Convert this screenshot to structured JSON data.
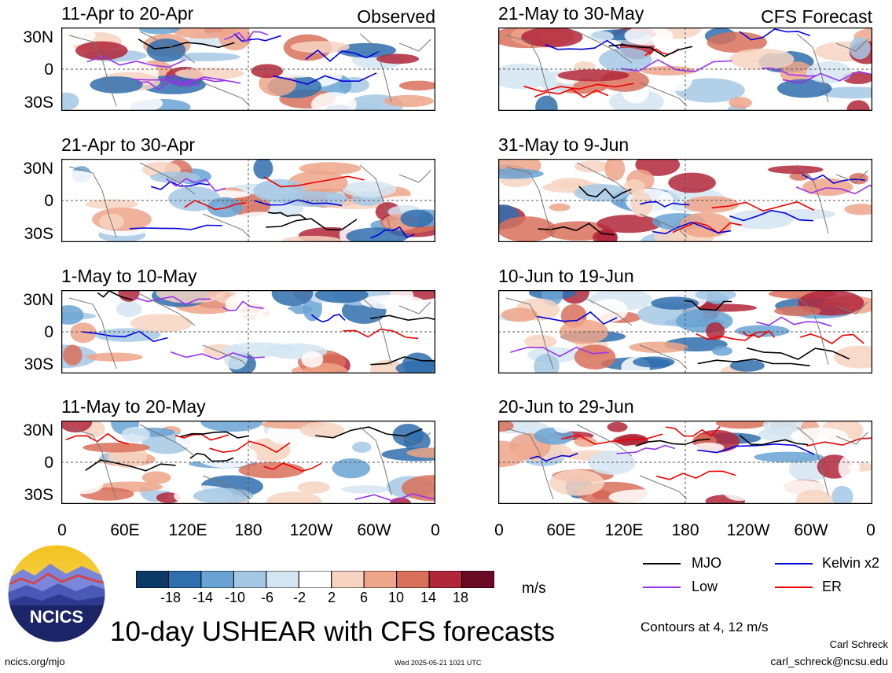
{
  "chart_data": {
    "type": "heatmap",
    "title": "10-day USHEAR with CFS forecasts",
    "variable": "USHEAR",
    "units": "m/s",
    "contour_note": "Contours at 4, 12 m/s",
    "colorbar": {
      "ticks": [
        "-18",
        "-14",
        "-10",
        "-6",
        "-2",
        "2",
        "6",
        "10",
        "14",
        "18"
      ],
      "colors": [
        "#0b3a66",
        "#2f6fae",
        "#6aa3d3",
        "#a4c8e4",
        "#d4e5f2",
        "#ffffff",
        "#f7d3c1",
        "#efa58a",
        "#d9705a",
        "#b2263a",
        "#6b0a24"
      ]
    },
    "legend": [
      {
        "label": "MJO",
        "color": "#000000"
      },
      {
        "label": "Kelvin x2",
        "color": "#0000dd"
      },
      {
        "label": "Low",
        "color": "#9933ee"
      },
      {
        "label": "ER",
        "color": "#ee0000"
      }
    ],
    "y_ticks": [
      "30N",
      "0",
      "30S"
    ],
    "x_ticks": [
      "0",
      "60E",
      "120E",
      "180",
      "120W",
      "60W",
      "0"
    ],
    "columns": [
      {
        "label": "Observed",
        "panels": [
          {
            "period": "11-Apr to 20-Apr"
          },
          {
            "period": "21-Apr to 30-Apr"
          },
          {
            "period": "1-May to 10-May"
          },
          {
            "period": "11-May to 20-May"
          }
        ]
      },
      {
        "label": "CFS Forecast",
        "panels": [
          {
            "period": "21-May to 30-May"
          },
          {
            "period": "31-May to 9-Jun"
          },
          {
            "period": "10-Jun to 19-Jun"
          },
          {
            "period": "20-Jun to 29-Jun"
          }
        ]
      }
    ]
  },
  "branding": {
    "logo_text": "NCICS",
    "site": "ncics.org/mjo",
    "timestamp": "Wed 2025-05-21 1021 UTC",
    "author": "Carl Schreck",
    "email": "carl_schreck@ncsu.edu"
  }
}
